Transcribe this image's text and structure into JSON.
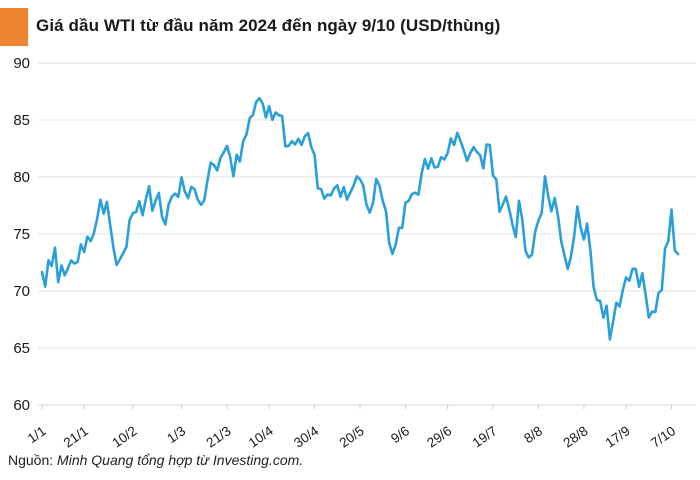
{
  "header": {
    "title": "Giá dầu WTI từ đầu năm 2024 đến ngày 9/10 (USD/thùng)",
    "accent_color": "#EF8533"
  },
  "footer": {
    "prefix": "Nguồn:",
    "text": " Minh Quang tổng hợp từ Investing.com."
  },
  "chart_data": {
    "type": "line",
    "title": "Giá dầu WTI từ đầu năm 2024 đến ngày 9/10 (USD/thùng)",
    "xlabel": "",
    "ylabel": "",
    "ylim": [
      60,
      90
    ],
    "yticks": [
      60,
      65,
      70,
      75,
      80,
      85,
      90
    ],
    "grid": "horizontal",
    "legend": "none",
    "line_color": "#2B9FD9",
    "grid_color": "#e3e3e3",
    "axis_color": "#d8d8d8",
    "tick_color": "#c9c9c9",
    "label_color": "#1a1a1a",
    "x_tick_labels": [
      "1/1",
      "21/1",
      "10/2",
      "1/3",
      "21/3",
      "10/4",
      "30/4",
      "20/5",
      "9/6",
      "29/6",
      "19/7",
      "8/8",
      "28/8",
      "17/9",
      "7/10"
    ],
    "x_tick_indices": [
      0,
      13,
      28,
      43,
      57,
      70,
      84,
      98,
      112,
      125,
      139,
      153,
      167,
      180,
      194
    ],
    "values": [
      71.65,
      70.38,
      72.7,
      72.19,
      73.81,
      70.77,
      72.24,
      71.37,
      72.02,
      72.68,
      72.4,
      72.56,
      74.08,
      73.41,
      74.76,
      74.37,
      75.09,
      76.36,
      78.01,
      76.78,
      77.82,
      75.85,
      73.82,
      72.28,
      72.78,
      73.31,
      73.86,
      76.22,
      76.84,
      76.92,
      77.87,
      76.64,
      78.03,
      79.19,
      77.04,
      77.91,
      78.61,
      76.49,
      75.84,
      77.58,
      78.26,
      78.54,
      78.26,
      79.97,
      78.74,
      78.15,
      79.13,
      78.93,
      78.01,
      77.56,
      77.93,
      79.72,
      81.26,
      81.04,
      80.58,
      81.68,
      82.16,
      82.73,
      81.73,
      80.07,
      81.95,
      81.35,
      83.17,
      83.71,
      85.15,
      85.43,
      86.59,
      86.91,
      86.43,
      85.23,
      86.21,
      85.02,
      85.66,
      85.41,
      85.36,
      82.69,
      82.73,
      83.14,
      82.85,
      83.36,
      82.81,
      83.57,
      83.85,
      82.63,
      81.93,
      79.0,
      78.95,
      78.11,
      78.48,
      78.38,
      78.99,
      79.26,
      78.26,
      79.12,
      78.02,
      78.63,
      79.23,
      80.06,
      79.8,
      79.26,
      77.57,
      76.87,
      77.72,
      79.83,
      79.23,
      77.91,
      76.99,
      74.22,
      73.25,
      74.07,
      75.55,
      75.53,
      77.74,
      77.9,
      78.5,
      78.62,
      78.45,
      80.33,
      81.57,
      80.73,
      81.63,
      80.83,
      80.9,
      81.74,
      81.54,
      82.1,
      83.38,
      82.81,
      83.88,
      83.16,
      82.33,
      81.41,
      82.1,
      82.62,
      82.21,
      81.91,
      80.76,
      82.85,
      82.82,
      80.13,
      79.78,
      76.96,
      77.59,
      78.28,
      77.16,
      75.81,
      74.73,
      77.91,
      76.31,
      73.52,
      72.94,
      73.2,
      75.23,
      76.19,
      76.84,
      80.06,
      78.35,
      76.98,
      78.16,
      76.65,
      74.37,
      73.17,
      71.93,
      73.01,
      74.83,
      77.42,
      75.53,
      74.52,
      75.91,
      73.55,
      70.34,
      69.2,
      69.15,
      67.67,
      68.71,
      65.75,
      67.31,
      68.97,
      68.65,
      70.09,
      71.19,
      70.91,
      71.95,
      71.92,
      70.37,
      71.56,
      69.69,
      67.67,
      68.18,
      68.17,
      69.83,
      70.1,
      73.71,
      74.38,
      77.14,
      73.57,
      73.24
    ]
  }
}
